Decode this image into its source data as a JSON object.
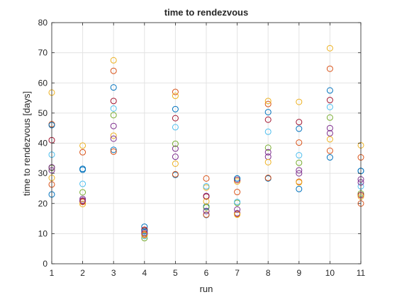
{
  "chart_data": {
    "type": "scatter",
    "title": "time to rendezvous",
    "xlabel": "run",
    "ylabel": "time to rendezvous [days]",
    "xlim": [
      1,
      11
    ],
    "ylim": [
      0,
      80
    ],
    "xticks": [
      1,
      2,
      3,
      4,
      5,
      6,
      7,
      8,
      9,
      10,
      11
    ],
    "yticks": [
      0,
      10,
      20,
      30,
      40,
      50,
      60,
      70,
      80
    ],
    "grid": true,
    "marker": "open-circle",
    "series": [
      {
        "color": "#0072BD",
        "points": [
          [
            1,
            23
          ],
          [
            2,
            31.5
          ],
          [
            3,
            58.5
          ],
          [
            4,
            12.3
          ],
          [
            5,
            51.3
          ],
          [
            6,
            19
          ],
          [
            7,
            28.3
          ],
          [
            8,
            50.3
          ],
          [
            9,
            24.8
          ],
          [
            10,
            57.5
          ],
          [
            11,
            30.8
          ]
        ]
      },
      {
        "color": "#D95319",
        "points": [
          [
            1,
            46.3
          ],
          [
            2,
            37
          ],
          [
            3,
            64
          ],
          [
            4,
            11
          ],
          [
            5,
            57
          ],
          [
            6,
            28.3
          ],
          [
            7,
            23.8
          ],
          [
            8,
            53
          ],
          [
            9,
            40.2
          ],
          [
            10,
            64.7
          ],
          [
            11,
            35.3
          ]
        ]
      },
      {
        "color": "#EDB120",
        "points": [
          [
            1,
            56.8
          ],
          [
            2,
            39.2
          ],
          [
            3,
            67.5
          ],
          [
            4,
            10.2
          ],
          [
            5,
            55.7
          ],
          [
            6,
            25.3
          ],
          [
            7,
            27.3
          ],
          [
            8,
            54
          ],
          [
            9,
            53.7
          ],
          [
            10,
            71.5
          ],
          [
            11,
            39.3
          ]
        ]
      },
      {
        "color": "#7E2F8E",
        "points": [
          [
            1,
            31
          ],
          [
            2,
            21.5
          ],
          [
            3,
            45.7
          ],
          [
            4,
            9.8
          ],
          [
            5,
            38.2
          ],
          [
            6,
            22.5
          ],
          [
            7,
            16.8
          ],
          [
            8,
            35.5
          ],
          [
            9,
            31
          ],
          [
            10,
            43.3
          ],
          [
            11,
            28
          ]
        ]
      },
      {
        "color": "#77AC30",
        "points": [
          [
            1,
            31.8
          ],
          [
            2,
            23.7
          ],
          [
            3,
            49.3
          ],
          [
            4,
            8.5
          ],
          [
            5,
            39.8
          ],
          [
            6,
            18.7
          ],
          [
            7,
            20.2
          ],
          [
            8,
            38.5
          ],
          [
            9,
            33.5
          ],
          [
            10,
            48.5
          ],
          [
            11,
            23.3
          ]
        ]
      },
      {
        "color": "#4DBEEE",
        "points": [
          [
            1,
            36.2
          ],
          [
            2,
            26.5
          ],
          [
            3,
            51.5
          ],
          [
            4,
            9.2
          ],
          [
            5,
            45.3
          ],
          [
            6,
            25.7
          ],
          [
            7,
            20.5
          ],
          [
            8,
            43.8
          ],
          [
            9,
            36
          ],
          [
            10,
            52
          ],
          [
            11,
            25.7
          ]
        ]
      },
      {
        "color": "#A2142F",
        "points": [
          [
            1,
            41
          ],
          [
            2,
            20.8
          ],
          [
            3,
            54
          ],
          [
            4,
            11.3
          ],
          [
            5,
            48.3
          ],
          [
            6,
            22.3
          ],
          [
            7,
            27.8
          ],
          [
            8,
            47.8
          ],
          [
            9,
            47
          ],
          [
            10,
            54.3
          ],
          [
            11,
            22.8
          ]
        ]
      },
      {
        "color": "#0072BD",
        "points": [
          [
            1,
            46
          ],
          [
            2,
            31.2
          ],
          [
            3,
            37.8
          ],
          [
            4,
            10.8
          ],
          [
            5,
            29.5
          ],
          [
            6,
            16.2
          ],
          [
            7,
            28.3
          ],
          [
            8,
            28.3
          ],
          [
            9,
            44.8
          ],
          [
            10,
            35.3
          ],
          [
            11,
            30.8
          ]
        ]
      },
      {
        "color": "#D95319",
        "points": [
          [
            1,
            26.3
          ],
          [
            2,
            20.5
          ],
          [
            3,
            37.2
          ],
          [
            4,
            9.8
          ],
          [
            5,
            29.7
          ],
          [
            6,
            16.3
          ],
          [
            7,
            16.5
          ],
          [
            8,
            28.5
          ],
          [
            9,
            27.2
          ],
          [
            10,
            37.5
          ],
          [
            11,
            20
          ]
        ]
      },
      {
        "color": "#EDB120",
        "points": [
          [
            1,
            28.5
          ],
          [
            2,
            19.8
          ],
          [
            3,
            42.5
          ],
          [
            4,
            9.5
          ],
          [
            5,
            33.2
          ],
          [
            6,
            20.7
          ],
          [
            7,
            16.3
          ],
          [
            8,
            33.7
          ],
          [
            9,
            27
          ],
          [
            10,
            41.3
          ],
          [
            11,
            22.3
          ]
        ]
      },
      {
        "color": "#7E2F8E",
        "points": [
          [
            1,
            32
          ],
          [
            2,
            21
          ],
          [
            3,
            41.5
          ],
          [
            4,
            10.3
          ],
          [
            5,
            35.5
          ],
          [
            6,
            17.5
          ],
          [
            7,
            18
          ],
          [
            8,
            37
          ],
          [
            9,
            30
          ],
          [
            10,
            45
          ],
          [
            11,
            27
          ]
        ]
      }
    ]
  }
}
